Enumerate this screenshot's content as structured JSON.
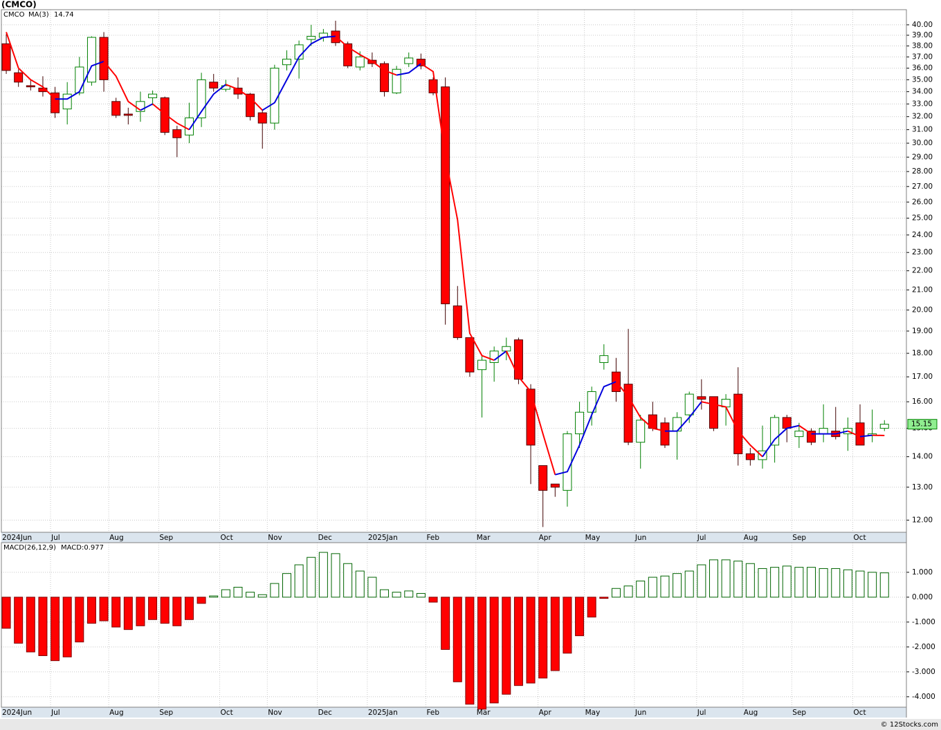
{
  "chart_data": [
    {
      "type": "candlestick",
      "title": "(CMCO)",
      "log_scale": true,
      "grid": true,
      "xlim": [
        -0.4,
        73.8
      ],
      "xticks": [
        {
          "value": -0.4,
          "label": "2024Jun"
        },
        {
          "value": 3.63,
          "label": "Jul"
        },
        {
          "value": 8.4,
          "label": "Aug"
        },
        {
          "value": 12.5,
          "label": "Sep"
        },
        {
          "value": 17.5,
          "label": "Oct"
        },
        {
          "value": 21.4,
          "label": "Nov"
        },
        {
          "value": 25.5,
          "label": "Dec"
        },
        {
          "value": 29.6,
          "label": "2025Jan"
        },
        {
          "value": 34.4,
          "label": "Feb"
        },
        {
          "value": 38.5,
          "label": "Mar"
        },
        {
          "value": 43.6,
          "label": "Apr"
        },
        {
          "value": 47.4,
          "label": "May"
        },
        {
          "value": 51.5,
          "label": "Jun"
        },
        {
          "value": 56.6,
          "label": "Jul"
        },
        {
          "value": 60.4,
          "label": "Aug"
        },
        {
          "value": 64.4,
          "label": "Sep"
        },
        {
          "value": 69.4,
          "label": "Oct"
        }
      ],
      "ylim": [
        11.65,
        41.5
      ],
      "yticks": [
        {
          "value": 12,
          "label": "12.00"
        },
        {
          "value": 13,
          "label": "13.00"
        },
        {
          "value": 14,
          "label": "14.00"
        },
        {
          "value": 15,
          "label": "15.00"
        },
        {
          "value": 16,
          "label": "16.00"
        },
        {
          "value": 17,
          "label": "17.00"
        },
        {
          "value": 18,
          "label": "18.00"
        },
        {
          "value": 19,
          "label": "19.00"
        },
        {
          "value": 20,
          "label": "20.00"
        },
        {
          "value": 21,
          "label": "21.00"
        },
        {
          "value": 22,
          "label": "22.00"
        },
        {
          "value": 23,
          "label": "23.00"
        },
        {
          "value": 24,
          "label": "24.00"
        },
        {
          "value": 25,
          "label": "25.00"
        },
        {
          "value": 26,
          "label": "26.00"
        },
        {
          "value": 27,
          "label": "27.00"
        },
        {
          "value": 28,
          "label": "28.00"
        },
        {
          "value": 29,
          "label": "29.00"
        },
        {
          "value": 30,
          "label": "30.00"
        },
        {
          "value": 31,
          "label": "31.00"
        },
        {
          "value": 32,
          "label": "32.00"
        },
        {
          "value": 33,
          "label": "33.00"
        },
        {
          "value": 34,
          "label": "34.00"
        },
        {
          "value": 35,
          "label": "35.00"
        },
        {
          "value": 36,
          "label": "36.00"
        },
        {
          "value": 37,
          "label": "37.00"
        },
        {
          "value": 38,
          "label": "38.00"
        },
        {
          "value": 39,
          "label": "39.00"
        },
        {
          "value": 40,
          "label": "40.00"
        }
      ],
      "series": [
        {
          "name": "CMCO",
          "color": "#008000",
          "down_color": "#ff0000",
          "open": [
            38.2,
            35.6,
            34.5,
            34.3,
            33.9,
            32.6,
            33.9,
            34.8,
            38.8,
            33.2,
            32.2,
            32.4,
            33.5,
            33.5,
            31.0,
            30.6,
            31.9,
            34.8,
            34.2,
            34.3,
            33.8,
            32.3,
            31.5,
            36.3,
            36.8,
            38.6,
            38.8,
            39.4,
            38.2,
            36.1,
            36.7,
            36.4,
            33.9,
            36.4,
            36.8,
            35.0,
            34.4,
            20.2,
            18.7,
            17.3,
            17.6,
            18.1,
            18.6,
            16.5,
            13.7,
            13.1,
            12.9,
            14.8,
            15.6,
            17.6,
            17.2,
            16.7,
            14.5,
            15.5,
            15.2,
            14.9,
            15.5,
            16.2,
            16.2,
            15.8,
            16.3,
            14.1,
            13.9,
            14.4,
            15.4,
            14.7,
            14.9,
            14.8,
            14.9,
            14.8,
            15.2,
            14.75,
            15.0
          ],
          "high": [
            39.1,
            35.9,
            35.0,
            35.3,
            34.4,
            34.8,
            37.0,
            38.9,
            39.3,
            33.5,
            32.7,
            34.0,
            34.1,
            33.6,
            31.3,
            33.1,
            35.6,
            35.5,
            35.0,
            35.2,
            33.9,
            32.5,
            36.3,
            37.6,
            38.5,
            40.0,
            39.6,
            40.4,
            38.4,
            37.5,
            37.4,
            36.6,
            36.2,
            37.4,
            37.3,
            35.2,
            35.2,
            21.2,
            18.7,
            17.9,
            18.3,
            18.7,
            18.7,
            16.7,
            13.7,
            13.1,
            14.9,
            16.0,
            16.6,
            18.4,
            17.8,
            19.1,
            15.5,
            16.0,
            15.4,
            15.6,
            16.4,
            16.9,
            16.2,
            16.3,
            17.4,
            14.3,
            15.1,
            15.5,
            15.5,
            15.2,
            15.0,
            15.9,
            15.8,
            15.4,
            15.9,
            15.7,
            15.3
          ],
          "low": [
            35.5,
            34.4,
            34.1,
            33.6,
            31.9,
            31.4,
            33.7,
            34.5,
            34.0,
            31.9,
            31.4,
            31.6,
            32.9,
            30.6,
            29.0,
            30.0,
            31.2,
            34.0,
            34.0,
            33.4,
            31.7,
            29.6,
            31.0,
            35.8,
            35.1,
            38.0,
            38.4,
            38.0,
            36.0,
            35.8,
            36.1,
            33.6,
            33.8,
            36.1,
            35.9,
            33.7,
            19.3,
            18.6,
            17.0,
            15.4,
            16.8,
            17.7,
            16.7,
            13.1,
            11.8,
            12.7,
            12.4,
            14.3,
            15.1,
            17.3,
            16.0,
            14.4,
            13.6,
            14.9,
            14.3,
            13.9,
            15.2,
            15.7,
            14.9,
            15.1,
            13.7,
            13.7,
            13.6,
            13.8,
            14.5,
            14.3,
            14.4,
            14.5,
            14.6,
            14.2,
            14.4,
            14.5,
            14.9
          ],
          "close": [
            35.8,
            34.8,
            34.4,
            34.0,
            32.3,
            33.8,
            36.1,
            38.8,
            35.0,
            32.1,
            32.1,
            33.2,
            33.8,
            30.8,
            30.4,
            31.9,
            35.0,
            34.3,
            34.5,
            33.8,
            32.0,
            31.5,
            36.0,
            36.8,
            38.1,
            38.9,
            39.2,
            38.3,
            36.2,
            37.0,
            36.4,
            34.0,
            35.9,
            36.9,
            36.2,
            33.9,
            20.3,
            18.7,
            17.2,
            17.7,
            18.1,
            18.3,
            16.9,
            14.4,
            12.9,
            13.0,
            14.8,
            15.6,
            16.4,
            17.9,
            16.4,
            14.5,
            15.3,
            15.0,
            14.4,
            15.4,
            16.3,
            16.1,
            15.0,
            16.1,
            14.1,
            13.9,
            14.2,
            15.4,
            15.0,
            14.9,
            14.5,
            15.0,
            14.7,
            15.0,
            14.4,
            14.8,
            15.15
          ]
        },
        {
          "name": "MA(3)",
          "color": "#0000dd",
          "down_color": "#ff0000",
          "values": [
            39.3,
            36.0,
            35.0,
            34.4,
            33.4,
            33.4,
            34.0,
            36.2,
            36.6,
            35.3,
            33.2,
            32.5,
            33.0,
            32.2,
            31.5,
            31.0,
            32.4,
            33.8,
            34.6,
            34.2,
            33.5,
            32.5,
            33.1,
            35.0,
            37.0,
            38.2,
            38.8,
            38.9,
            37.9,
            37.2,
            36.6,
            35.8,
            35.4,
            35.6,
            36.4,
            35.7,
            29.0,
            24.9,
            18.9,
            17.9,
            17.7,
            18.1,
            17.0,
            16.4,
            14.8,
            13.4,
            13.5,
            14.4,
            15.5,
            16.6,
            16.8,
            16.2,
            15.4,
            15.0,
            14.9,
            14.9,
            15.4,
            16.0,
            15.9,
            15.8,
            14.9,
            14.4,
            14.0,
            14.6,
            15.0,
            15.1,
            14.8,
            14.8,
            14.8,
            14.9,
            14.7,
            14.75,
            14.74
          ]
        }
      ]
    },
    {
      "type": "histogram",
      "title": "MACD(26,12,9)",
      "label": "MACD:0.977",
      "grid": true,
      "color": "#006400",
      "down_color": "#ff0000",
      "ylim": [
        -4.42,
        2.19
      ],
      "yticks": [
        {
          "value": 1,
          "label": "1.000"
        },
        {
          "value": 0,
          "label": "0.000"
        },
        {
          "value": -1,
          "label": "-1.000"
        },
        {
          "value": -2,
          "label": "-2.000"
        },
        {
          "value": -3,
          "label": "-3.000"
        },
        {
          "value": -4,
          "label": "-4.000"
        }
      ],
      "values": [
        -1.25,
        -1.85,
        -2.2,
        -2.35,
        -2.55,
        -2.4,
        -1.8,
        -1.05,
        -0.95,
        -1.2,
        -1.3,
        -1.15,
        -0.9,
        -1.05,
        -1.15,
        -0.9,
        -0.25,
        0.05,
        0.3,
        0.4,
        0.2,
        0.1,
        0.55,
        0.95,
        1.3,
        1.6,
        1.8,
        1.75,
        1.35,
        1.05,
        0.8,
        0.3,
        0.2,
        0.25,
        0.15,
        -0.2,
        -2.1,
        -3.4,
        -4.3,
        -4.5,
        -4.25,
        -3.9,
        -3.55,
        -3.45,
        -3.25,
        -2.95,
        -2.25,
        -1.55,
        -0.8,
        -0.05,
        0.35,
        0.45,
        0.65,
        0.8,
        0.85,
        0.95,
        1.05,
        1.3,
        1.5,
        1.5,
        1.45,
        1.35,
        1.15,
        1.2,
        1.25,
        1.2,
        1.2,
        1.15,
        1.15,
        1.1,
        1.05,
        1.0,
        0.977
      ]
    }
  ],
  "footer": "© 12Stocks.com"
}
